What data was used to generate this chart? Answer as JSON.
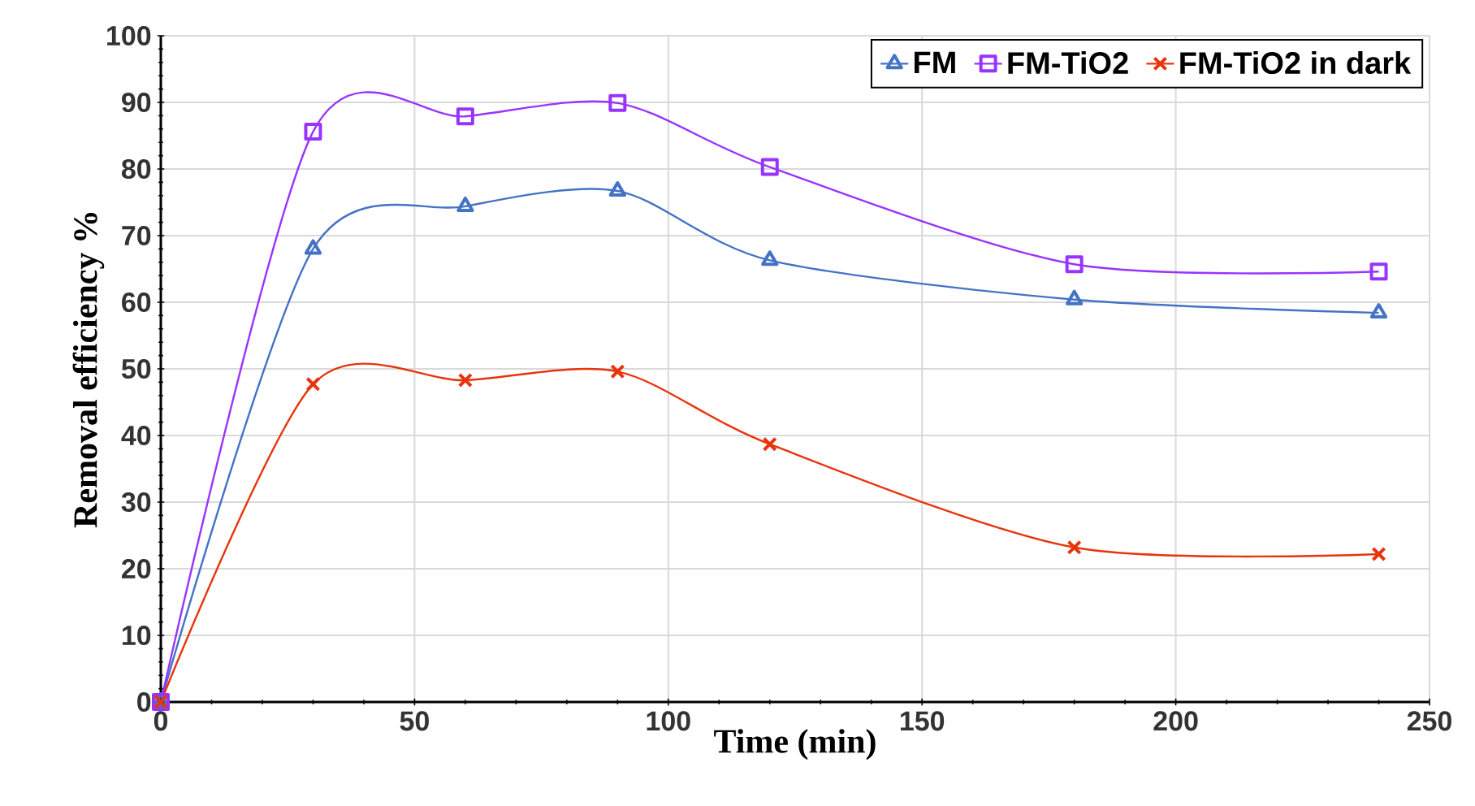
{
  "chart_data": {
    "type": "line",
    "xlabel": "Time (min)",
    "ylabel": "Removal efficiency %",
    "x": [
      0,
      30,
      60,
      90,
      120,
      180,
      240
    ],
    "series": [
      {
        "name": "FM",
        "color": "#4472c4",
        "marker": "triangle",
        "values": [
          0,
          68,
          74.4,
          76.7,
          66.3,
          60.4,
          58.4
        ]
      },
      {
        "name": "FM-TiO2",
        "color": "#9933ff",
        "marker": "square",
        "values": [
          0,
          85.6,
          87.9,
          89.9,
          80.3,
          65.7,
          64.6
        ]
      },
      {
        "name": "FM-TiO2 in dark",
        "color": "#e8340c",
        "marker": "cross",
        "values": [
          0,
          47.7,
          48.3,
          49.6,
          38.7,
          23.2,
          22.2
        ]
      }
    ],
    "xlim": [
      0,
      250
    ],
    "xticks": [
      0,
      50,
      100,
      150,
      200,
      250
    ],
    "ylim": [
      0,
      100
    ],
    "yticks": [
      0,
      10,
      20,
      30,
      40,
      50,
      60,
      70,
      80,
      90,
      100
    ],
    "grid": true,
    "legend": "top right"
  }
}
